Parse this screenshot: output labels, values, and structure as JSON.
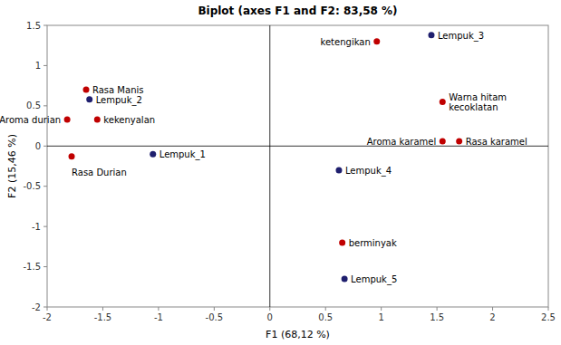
{
  "chart_data": {
    "type": "scatter",
    "title": "Biplot (axes F1 and F2: 83,58 %)",
    "xlabel": "F1 (68,12 %)",
    "ylabel": "F2 (15,46 %)",
    "xlim": [
      -2,
      2.5
    ],
    "ylim": [
      -2,
      1.5
    ],
    "xticks": [
      -2,
      -1.5,
      -1,
      -0.5,
      0,
      0.5,
      1,
      1.5,
      2,
      2.5
    ],
    "yticks": [
      -2,
      -1.5,
      -1,
      -0.5,
      0,
      0.5,
      1,
      1.5
    ],
    "grid": false,
    "series": [
      {
        "color": "#c00000",
        "x": [
          -1.65,
          -1.55,
          -1.82,
          -1.78,
          0.96,
          1.55,
          1.55,
          1.7,
          0.65
        ],
        "values": [
          0.7,
          0.33,
          0.33,
          -0.13,
          1.3,
          0.55,
          0.06,
          0.06,
          -1.2
        ],
        "labels": [
          "Rasa Manis",
          "kekenyalan",
          "Aroma durian",
          "Rasa Durian",
          "ketengikan",
          "Warna hitam\nkecoklatan",
          "Aroma karamel",
          "Rasa karamel",
          "berminyak"
        ]
      },
      {
        "color": "#1f1f6e",
        "x": [
          -1.62,
          -1.05,
          1.45,
          0.62,
          0.67
        ],
        "values": [
          0.58,
          -0.1,
          1.38,
          -0.3,
          -1.65
        ],
        "labels": [
          "Lempuk_2",
          "Lempuk_1",
          "Lempuk_3",
          "Lempuk_4",
          "Lempuk_5"
        ]
      }
    ]
  }
}
